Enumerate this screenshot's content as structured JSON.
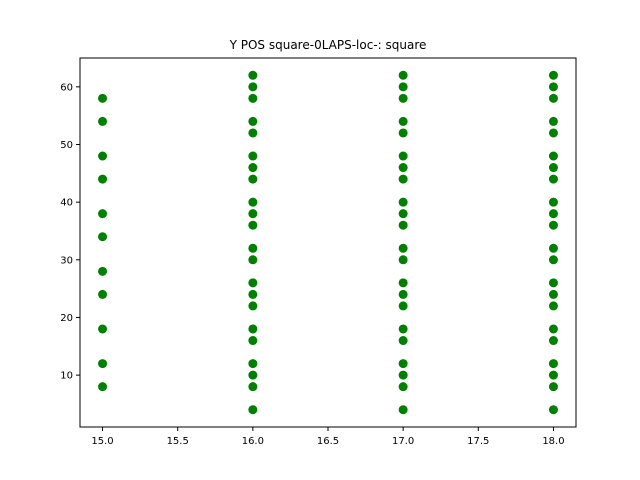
{
  "chart_data": {
    "type": "scatter",
    "title": "Y POS square-0LAPS-loc-: square",
    "xlabel": "",
    "ylabel": "",
    "xlim": [
      14.85,
      18.15
    ],
    "ylim": [
      1.0,
      65.0
    ],
    "x_ticks": [
      15.0,
      15.5,
      16.0,
      16.5,
      17.0,
      17.5,
      18.0
    ],
    "x_tick_labels": [
      "15.0",
      "15.5",
      "16.0",
      "16.5",
      "17.0",
      "17.5",
      "18.0"
    ],
    "y_ticks": [
      10,
      20,
      30,
      40,
      50,
      60
    ],
    "y_tick_labels": [
      "10",
      "20",
      "30",
      "40",
      "50",
      "60"
    ],
    "grid": false,
    "legend": "none",
    "marker_color": "#008000",
    "points": [
      {
        "x": 15,
        "y": 8
      },
      {
        "x": 15,
        "y": 12
      },
      {
        "x": 15,
        "y": 18
      },
      {
        "x": 15,
        "y": 24
      },
      {
        "x": 15,
        "y": 28
      },
      {
        "x": 15,
        "y": 34
      },
      {
        "x": 15,
        "y": 38
      },
      {
        "x": 15,
        "y": 44
      },
      {
        "x": 15,
        "y": 48
      },
      {
        "x": 15,
        "y": 54
      },
      {
        "x": 15,
        "y": 58
      },
      {
        "x": 16,
        "y": 4
      },
      {
        "x": 16,
        "y": 8
      },
      {
        "x": 16,
        "y": 10
      },
      {
        "x": 16,
        "y": 12
      },
      {
        "x": 16,
        "y": 16
      },
      {
        "x": 16,
        "y": 18
      },
      {
        "x": 16,
        "y": 22
      },
      {
        "x": 16,
        "y": 24
      },
      {
        "x": 16,
        "y": 26
      },
      {
        "x": 16,
        "y": 30
      },
      {
        "x": 16,
        "y": 32
      },
      {
        "x": 16,
        "y": 36
      },
      {
        "x": 16,
        "y": 38
      },
      {
        "x": 16,
        "y": 40
      },
      {
        "x": 16,
        "y": 44
      },
      {
        "x": 16,
        "y": 46
      },
      {
        "x": 16,
        "y": 48
      },
      {
        "x": 16,
        "y": 52
      },
      {
        "x": 16,
        "y": 54
      },
      {
        "x": 16,
        "y": 58
      },
      {
        "x": 16,
        "y": 60
      },
      {
        "x": 16,
        "y": 62
      },
      {
        "x": 17,
        "y": 4
      },
      {
        "x": 17,
        "y": 8
      },
      {
        "x": 17,
        "y": 10
      },
      {
        "x": 17,
        "y": 12
      },
      {
        "x": 17,
        "y": 16
      },
      {
        "x": 17,
        "y": 18
      },
      {
        "x": 17,
        "y": 22
      },
      {
        "x": 17,
        "y": 24
      },
      {
        "x": 17,
        "y": 26
      },
      {
        "x": 17,
        "y": 30
      },
      {
        "x": 17,
        "y": 32
      },
      {
        "x": 17,
        "y": 36
      },
      {
        "x": 17,
        "y": 38
      },
      {
        "x": 17,
        "y": 40
      },
      {
        "x": 17,
        "y": 44
      },
      {
        "x": 17,
        "y": 46
      },
      {
        "x": 17,
        "y": 48
      },
      {
        "x": 17,
        "y": 52
      },
      {
        "x": 17,
        "y": 54
      },
      {
        "x": 17,
        "y": 58
      },
      {
        "x": 17,
        "y": 60
      },
      {
        "x": 17,
        "y": 62
      },
      {
        "x": 18,
        "y": 4
      },
      {
        "x": 18,
        "y": 8
      },
      {
        "x": 18,
        "y": 10
      },
      {
        "x": 18,
        "y": 12
      },
      {
        "x": 18,
        "y": 16
      },
      {
        "x": 18,
        "y": 18
      },
      {
        "x": 18,
        "y": 22
      },
      {
        "x": 18,
        "y": 24
      },
      {
        "x": 18,
        "y": 26
      },
      {
        "x": 18,
        "y": 30
      },
      {
        "x": 18,
        "y": 32
      },
      {
        "x": 18,
        "y": 36
      },
      {
        "x": 18,
        "y": 38
      },
      {
        "x": 18,
        "y": 40
      },
      {
        "x": 18,
        "y": 44
      },
      {
        "x": 18,
        "y": 46
      },
      {
        "x": 18,
        "y": 48
      },
      {
        "x": 18,
        "y": 52
      },
      {
        "x": 18,
        "y": 54
      },
      {
        "x": 18,
        "y": 58
      },
      {
        "x": 18,
        "y": 60
      },
      {
        "x": 18,
        "y": 62
      }
    ]
  }
}
